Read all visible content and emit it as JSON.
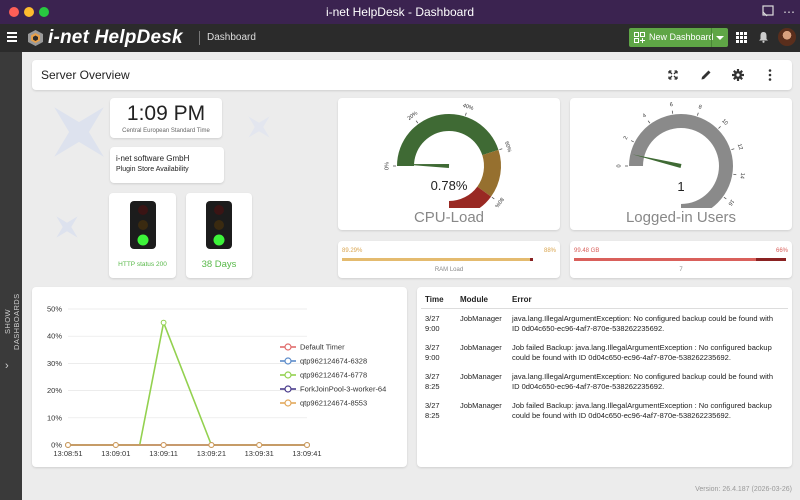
{
  "window": {
    "title": "i-net HelpDesk - Dashboard"
  },
  "header": {
    "brand": "i-net HelpDesk",
    "breadcrumb": "Dashboard",
    "new_dashboard_label": "New Dashboard"
  },
  "sidebar": {
    "label": "SHOW DASHBOARDS"
  },
  "overview": {
    "title": "Server Overview"
  },
  "clock": {
    "time": "1:09 PM",
    "timezone": "Central European Standard Time"
  },
  "company": {
    "name": "i-net software GmbH",
    "subtitle": "Plugin Store Availability"
  },
  "traffic_lights": [
    {
      "caption": "HTTP status 200",
      "state": "green"
    },
    {
      "caption": "38 Days",
      "state": "green"
    }
  ],
  "cpu_gauge": {
    "title": "CPU-Load",
    "value_label": "0.78%",
    "value": 0.78,
    "ticks": [
      "0%",
      "20%",
      "40%",
      "60%",
      "80%",
      "100%"
    ],
    "bands": [
      {
        "from": 0,
        "to": 60,
        "color": "#3f6a34"
      },
      {
        "from": 60,
        "to": 80,
        "color": "#96702f"
      },
      {
        "from": 80,
        "to": 100,
        "color": "#992923"
      }
    ]
  },
  "users_gauge": {
    "title": "Logged-in Users",
    "value_label": "1",
    "value": 1,
    "ticks": [
      "0",
      "2",
      "4",
      "6",
      "8",
      "10",
      "12",
      "14",
      "16",
      "18",
      "20"
    ],
    "bands": [
      {
        "from": 0,
        "to": 20,
        "color": "#8a8a8a"
      }
    ]
  },
  "ram_bar": {
    "left_label": "89.29%",
    "right_label": "88%",
    "caption": "RAM Load",
    "value": 89.29,
    "threshold": 88,
    "color_main": "#e4bb6f",
    "color_over": "#8a2222"
  },
  "disk_bar": {
    "left_label": "99.48 GB",
    "right_label": "66%",
    "caption": "7",
    "value": 99,
    "threshold": 85,
    "color_main": "#d9605b",
    "color_over": "#8a2222"
  },
  "chart_data": {
    "type": "line",
    "x": [
      "13:08:51",
      "13:09:01",
      "13:09:06",
      "13:09:11",
      "13:09:21",
      "13:09:31",
      "13:09:41"
    ],
    "xticks": [
      "13:08:51",
      "13:09:01",
      "13:09:11",
      "13:09:21",
      "13:09:31",
      "13:09:41"
    ],
    "yticks": [
      "0%",
      "10%",
      "20%",
      "30%",
      "40%",
      "50%"
    ],
    "ylim": [
      0,
      50
    ],
    "legend_position": "right",
    "series": [
      {
        "name": "Default Timer",
        "color": "#e06c6c",
        "values": [
          0,
          0,
          0,
          0,
          0,
          0,
          0
        ]
      },
      {
        "name": "qtp962124674-6328",
        "color": "#5b8bc9",
        "values": [
          0,
          0,
          0,
          0,
          0,
          0,
          0
        ]
      },
      {
        "name": "qtp962124674-6778",
        "color": "#93d14f",
        "values": [
          0,
          0,
          0,
          45,
          0,
          0,
          0
        ]
      },
      {
        "name": "ForkJoinPool-3-worker-64",
        "color": "#4a3c8c",
        "values": [
          0,
          0,
          0,
          0,
          0,
          0,
          0
        ]
      },
      {
        "name": "qtp962124674-8553",
        "color": "#e2a85c",
        "values": [
          0,
          0,
          0,
          0,
          0,
          0,
          0
        ]
      }
    ]
  },
  "log": {
    "headers": [
      "Time",
      "Module",
      "Error"
    ],
    "rows": [
      {
        "date": "3/27",
        "time": "9:00",
        "module": "JobManager",
        "error": [
          "java.lang.IllegalArgumentException: No configured backup could be found with",
          "ID 0d04c650-ec96-4af7-870e-538262235692."
        ]
      },
      {
        "date": "3/27",
        "time": "9:00",
        "module": "JobManager",
        "error": [
          "Job failed Backup: java.lang.IllegalArgumentException : No configured backup",
          "could be found with ID 0d04c650-ec96-4af7-870e-538262235692."
        ]
      },
      {
        "date": "3/27",
        "time": "8:25",
        "module": "JobManager",
        "error": [
          "java.lang.IllegalArgumentException: No configured backup could be found with",
          "ID 0d04c650-ec96-4af7-870e-538262235692."
        ]
      },
      {
        "date": "3/27",
        "time": "8:25",
        "module": "JobManager",
        "error": [
          "Job failed Backup: java.lang.IllegalArgumentException : No configured backup",
          "could be found with ID 0d04c650-ec96-4af7-870e-538262235692."
        ]
      }
    ]
  },
  "footer": {
    "version": "Version: 26.4.187 (2026-03-26)"
  }
}
